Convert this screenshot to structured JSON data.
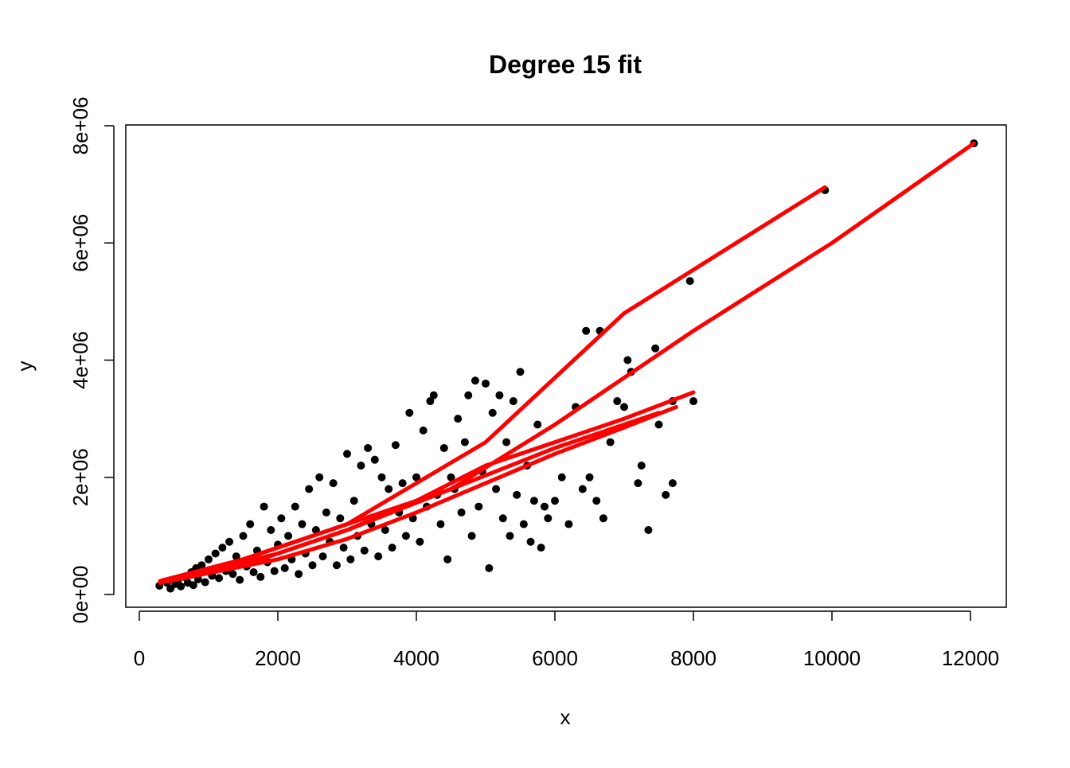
{
  "chart_data": {
    "type": "scatter",
    "title": "Degree 15 fit",
    "xlabel": "x",
    "ylabel": "y",
    "xlim": [
      0,
      12500
    ],
    "ylim": [
      -200000,
      8000000
    ],
    "xticks": [
      0,
      2000,
      4000,
      6000,
      8000,
      10000,
      12000
    ],
    "xtick_labels": [
      "0",
      "2000",
      "4000",
      "6000",
      "8000",
      "10000",
      "12000"
    ],
    "yticks": [
      0,
      2000000,
      4000000,
      6000000,
      8000000
    ],
    "ytick_labels": [
      "0e+00",
      "2e+06",
      "4e+06",
      "6e+06",
      "8e+06"
    ],
    "grid": false,
    "legend": "none",
    "colors": {
      "points": "#000000",
      "fit": "#ff0000",
      "axes": "#000000"
    },
    "series": [
      {
        "kind": "points",
        "points": [
          [
            290,
            150000
          ],
          [
            400,
            200000
          ],
          [
            450,
            100000
          ],
          [
            520,
            180000
          ],
          [
            560,
            250000
          ],
          [
            600,
            140000
          ],
          [
            650,
            300000
          ],
          [
            700,
            200000
          ],
          [
            750,
            380000
          ],
          [
            780,
            160000
          ],
          [
            820,
            450000
          ],
          [
            850,
            260000
          ],
          [
            900,
            500000
          ],
          [
            950,
            210000
          ],
          [
            1000,
            600000
          ],
          [
            1050,
            320000
          ],
          [
            1100,
            700000
          ],
          [
            1150,
            280000
          ],
          [
            1200,
            800000
          ],
          [
            1250,
            400000
          ],
          [
            1300,
            900000
          ],
          [
            1350,
            350000
          ],
          [
            1400,
            650000
          ],
          [
            1450,
            250000
          ],
          [
            1500,
            1000000
          ],
          [
            1550,
            480000
          ],
          [
            1600,
            1200000
          ],
          [
            1650,
            380000
          ],
          [
            1700,
            750000
          ],
          [
            1750,
            300000
          ],
          [
            1800,
            1500000
          ],
          [
            1850,
            550000
          ],
          [
            1900,
            1100000
          ],
          [
            1950,
            400000
          ],
          [
            2000,
            850000
          ],
          [
            2050,
            1300000
          ],
          [
            2100,
            450000
          ],
          [
            2150,
            1000000
          ],
          [
            2200,
            600000
          ],
          [
            2250,
            1500000
          ],
          [
            2300,
            350000
          ],
          [
            2350,
            1200000
          ],
          [
            2400,
            700000
          ],
          [
            2450,
            1800000
          ],
          [
            2500,
            500000
          ],
          [
            2550,
            1100000
          ],
          [
            2600,
            2000000
          ],
          [
            2650,
            650000
          ],
          [
            2700,
            1400000
          ],
          [
            2750,
            900000
          ],
          [
            2800,
            1900000
          ],
          [
            2850,
            500000
          ],
          [
            2900,
            1300000
          ],
          [
            2950,
            800000
          ],
          [
            3000,
            2400000
          ],
          [
            3050,
            600000
          ],
          [
            3100,
            1600000
          ],
          [
            3150,
            1000000
          ],
          [
            3200,
            2200000
          ],
          [
            3250,
            750000
          ],
          [
            3300,
            2500000
          ],
          [
            3350,
            1200000
          ],
          [
            3400,
            2300000
          ],
          [
            3450,
            650000
          ],
          [
            3500,
            2000000
          ],
          [
            3550,
            1100000
          ],
          [
            3600,
            1800000
          ],
          [
            3650,
            800000
          ],
          [
            3700,
            2550000
          ],
          [
            3750,
            1400000
          ],
          [
            3800,
            1900000
          ],
          [
            3850,
            1000000
          ],
          [
            3900,
            3100000
          ],
          [
            3950,
            1300000
          ],
          [
            4000,
            2000000
          ],
          [
            4050,
            900000
          ],
          [
            4100,
            2800000
          ],
          [
            4150,
            1500000
          ],
          [
            4200,
            3300000
          ],
          [
            4250,
            3400000
          ],
          [
            4300,
            1700000
          ],
          [
            4350,
            1200000
          ],
          [
            4400,
            2500000
          ],
          [
            4450,
            600000
          ],
          [
            4500,
            2000000
          ],
          [
            4550,
            1800000
          ],
          [
            4600,
            3000000
          ],
          [
            4650,
            1400000
          ],
          [
            4700,
            2600000
          ],
          [
            4750,
            3400000
          ],
          [
            4800,
            1000000
          ],
          [
            4850,
            3650000
          ],
          [
            4900,
            1500000
          ],
          [
            4950,
            2100000
          ],
          [
            5000,
            3600000
          ],
          [
            5050,
            450000
          ],
          [
            5100,
            3100000
          ],
          [
            5150,
            1800000
          ],
          [
            5200,
            3400000
          ],
          [
            5250,
            1300000
          ],
          [
            5300,
            2600000
          ],
          [
            5350,
            1000000
          ],
          [
            5400,
            3300000
          ],
          [
            5450,
            1700000
          ],
          [
            5500,
            3800000
          ],
          [
            5550,
            1200000
          ],
          [
            5600,
            2200000
          ],
          [
            5650,
            900000
          ],
          [
            5700,
            1600000
          ],
          [
            5750,
            2900000
          ],
          [
            5800,
            800000
          ],
          [
            5850,
            1500000
          ],
          [
            5900,
            1300000
          ],
          [
            6000,
            1600000
          ],
          [
            6100,
            2000000
          ],
          [
            6200,
            1200000
          ],
          [
            6300,
            3200000
          ],
          [
            6400,
            1800000
          ],
          [
            6450,
            4500000
          ],
          [
            6500,
            2000000
          ],
          [
            6600,
            1600000
          ],
          [
            6650,
            4500000
          ],
          [
            6700,
            1300000
          ],
          [
            6800,
            2600000
          ],
          [
            6900,
            3300000
          ],
          [
            7000,
            3200000
          ],
          [
            7050,
            4000000
          ],
          [
            7100,
            3800000
          ],
          [
            7200,
            1900000
          ],
          [
            7250,
            2200000
          ],
          [
            7350,
            1100000
          ],
          [
            7450,
            4200000
          ],
          [
            7500,
            2900000
          ],
          [
            7600,
            1700000
          ],
          [
            7700,
            1900000
          ],
          [
            7700,
            3300000
          ],
          [
            7950,
            5350000
          ],
          [
            8000,
            3300000
          ],
          [
            9900,
            6900000
          ],
          [
            12050,
            7700000
          ]
        ]
      },
      {
        "kind": "fit-line",
        "points": [
          [
            300,
            200000
          ],
          [
            2000,
            700000
          ],
          [
            3000,
            1100000
          ],
          [
            4000,
            1600000
          ],
          [
            5000,
            2200000
          ],
          [
            6000,
            2600000
          ],
          [
            7000,
            3000000
          ],
          [
            8000,
            3450000
          ]
        ]
      },
      {
        "kind": "fit-line",
        "points": [
          [
            300,
            200000
          ],
          [
            2000,
            600000
          ],
          [
            3000,
            950000
          ],
          [
            4000,
            1400000
          ],
          [
            5000,
            1900000
          ],
          [
            6000,
            2400000
          ],
          [
            7000,
            2850000
          ],
          [
            7750,
            3200000
          ]
        ]
      },
      {
        "kind": "fit-line",
        "points": [
          [
            300,
            220000
          ],
          [
            1500,
            500000
          ],
          [
            2500,
            900000
          ],
          [
            3000,
            1100000
          ],
          [
            4500,
            1800000
          ],
          [
            6000,
            2500000
          ],
          [
            7500,
            3100000
          ]
        ]
      },
      {
        "kind": "fit-line",
        "points": [
          [
            300,
            230000
          ],
          [
            1500,
            600000
          ],
          [
            2500,
            1000000
          ],
          [
            3000,
            1200000
          ],
          [
            5000,
            2600000
          ],
          [
            7000,
            4800000
          ],
          [
            9900,
            6950000
          ]
        ]
      },
      {
        "kind": "fit-line",
        "points": [
          [
            300,
            230000
          ],
          [
            1500,
            600000
          ],
          [
            2500,
            1000000
          ],
          [
            3000,
            1200000
          ],
          [
            4500,
            1800000
          ],
          [
            6000,
            2900000
          ],
          [
            8000,
            4500000
          ],
          [
            10000,
            6000000
          ],
          [
            12050,
            7700000
          ]
        ]
      }
    ]
  }
}
